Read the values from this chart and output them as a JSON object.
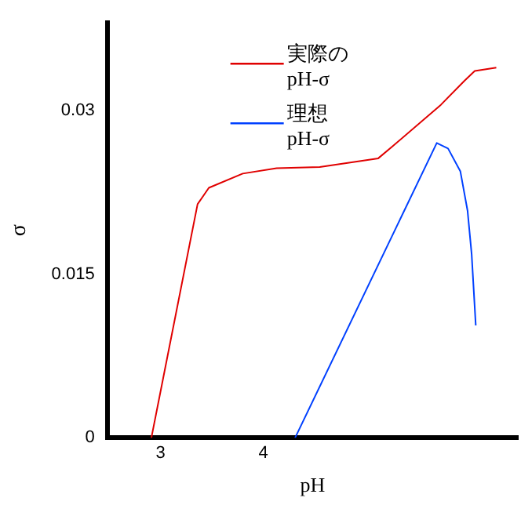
{
  "chart_data": {
    "type": "line",
    "xlabel": "pH",
    "ylabel": "σ",
    "xlim": [
      2.48,
      6.48
    ],
    "ylim": [
      0,
      0.038
    ],
    "xticks": [
      3,
      4
    ],
    "yticks": [
      0,
      0.015,
      0.03
    ],
    "grid": false,
    "legend": "top",
    "marker": "none",
    "line_style": "solid",
    "series": [
      {
        "name": "実際の pH-σ",
        "color": "#e00000",
        "x": [
          2.91,
          3.36,
          3.47,
          3.8,
          4.13,
          4.55,
          5.12,
          5.26,
          5.73,
          5.96,
          6.06,
          6.27
        ],
        "values": [
          0,
          0.0214,
          0.0229,
          0.0242,
          0.0247,
          0.0248,
          0.0256,
          0.0267,
          0.0305,
          0.0327,
          0.0336,
          0.0339
        ]
      },
      {
        "name": "理想 pH-σ",
        "color": "#0040ff",
        "x": [
          4.31,
          5.69,
          5.8,
          5.92,
          5.99,
          6.03,
          6.07
        ],
        "values": [
          0,
          0.027,
          0.0265,
          0.0244,
          0.0208,
          0.0168,
          0.0103
        ]
      }
    ]
  }
}
